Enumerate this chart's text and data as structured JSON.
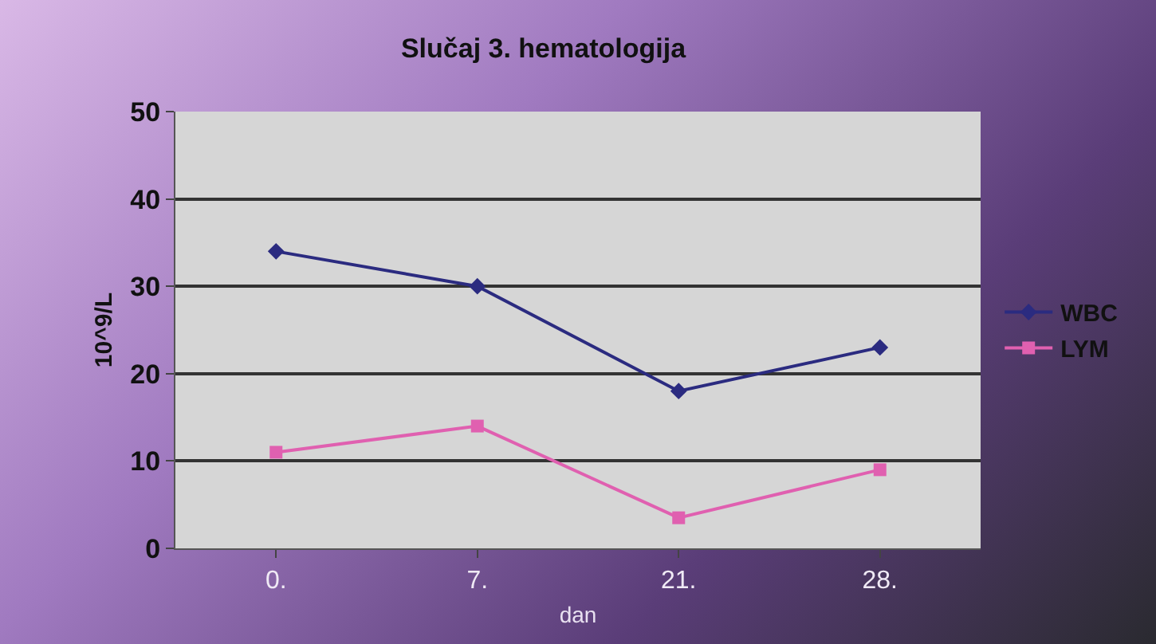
{
  "chart_data": {
    "type": "line",
    "title": "Slučaj 3. hematologija",
    "xlabel": "dan",
    "ylabel": "10^9/L",
    "categories": [
      "0.",
      "7.",
      "21.",
      "28."
    ],
    "series": [
      {
        "name": "WBC",
        "color": "#2b2b80",
        "values": [
          34,
          30,
          18,
          23
        ],
        "marker": "diamond"
      },
      {
        "name": "LYM",
        "color": "#e060b0",
        "values": [
          11,
          14,
          3.5,
          9
        ],
        "marker": "square"
      }
    ],
    "ylim": [
      0,
      50
    ],
    "yticks": [
      0,
      10,
      20,
      30,
      40,
      50
    ],
    "grid": "y",
    "legend": "right"
  }
}
